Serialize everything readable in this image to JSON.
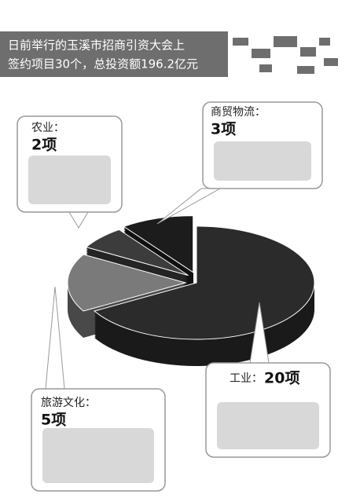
{
  "chart_data": {
    "type": "pie",
    "title": "日前举行的玉溪市招商引资大会上",
    "subtitle": "签约项目30个，总投资额196.2亿元",
    "categories": [
      "工业：",
      "旅游文化：",
      "农业：",
      "商贸物流："
    ],
    "values": [
      20,
      5,
      2,
      3
    ],
    "value_labels": [
      "20项",
      "5项",
      "2项",
      "3项"
    ],
    "colors": [
      "#2b2b2b",
      "#7a7a7a",
      "#3c3c3c",
      "#1c1c1c"
    ]
  }
}
